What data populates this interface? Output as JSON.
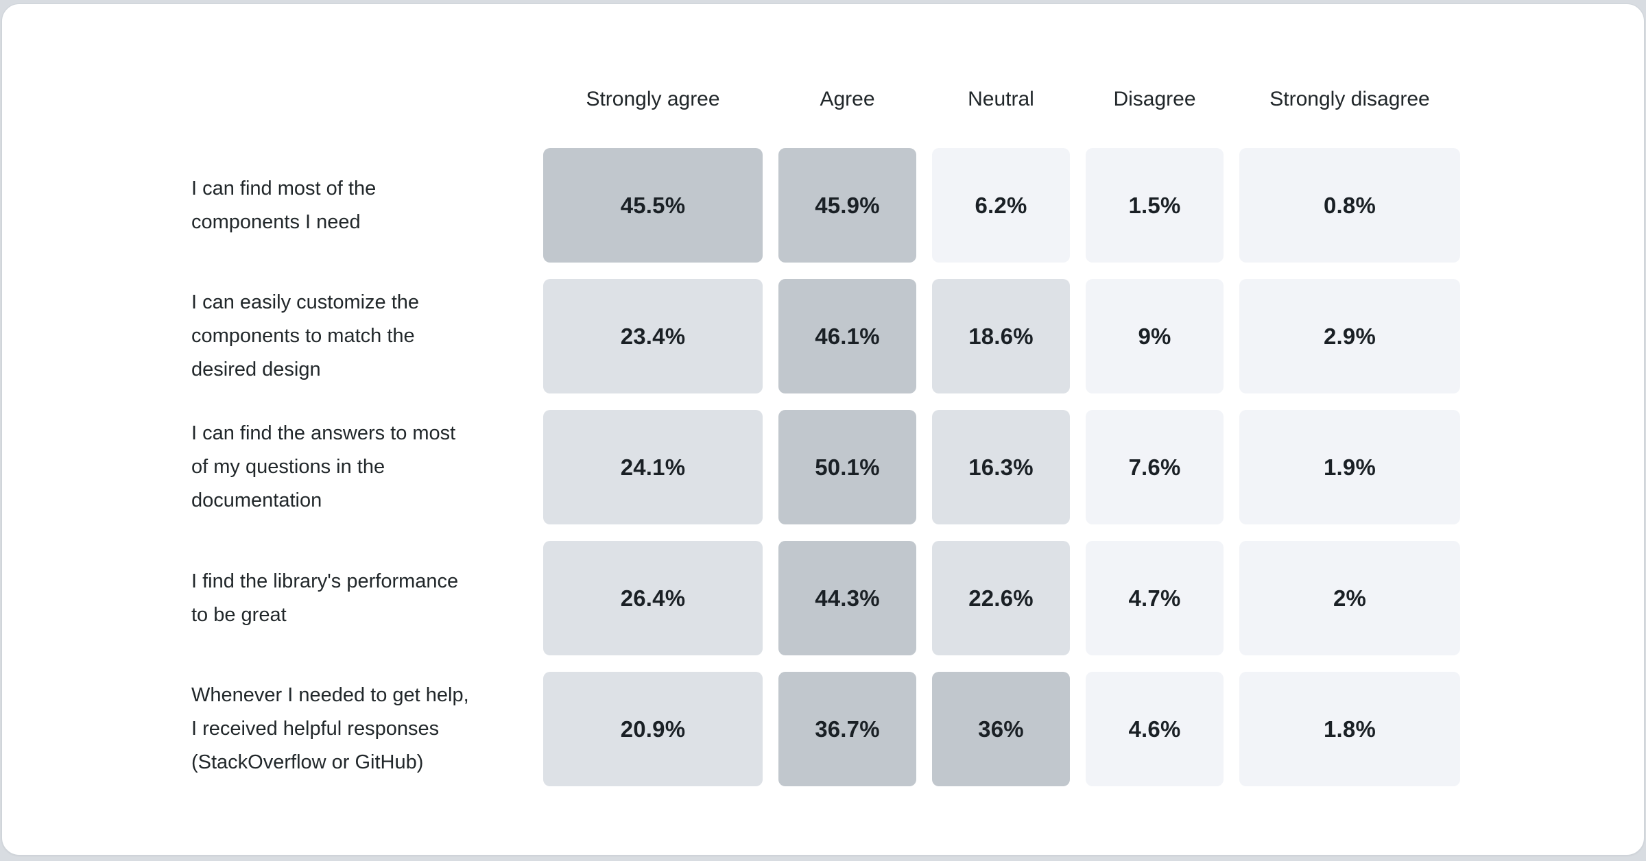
{
  "page": {
    "background": "#d8dce1",
    "card_background": "#ffffff",
    "card_border": "#ced3d9"
  },
  "chart_data": {
    "type": "heatmap",
    "title": "",
    "unit": "%",
    "legend_position": "none",
    "grid": false,
    "palette": {
      "high": "#c1c7cd",
      "mid": "#dde1e6",
      "low": "#f2f4f8",
      "text": "#1a2025"
    },
    "columns": [
      "Strongly agree",
      "Agree",
      "Neutral",
      "Disagree",
      "Strongly disagree"
    ],
    "rows": [
      {
        "label": "I can find most of the components I need",
        "label_lines": [
          "I can find most of the",
          "components I need"
        ],
        "values": [
          45.5,
          45.9,
          6.2,
          1.5,
          0.8
        ],
        "display": [
          "45.5%",
          "45.9%",
          "6.2%",
          "1.5%",
          "0.8%"
        ],
        "cell_colors": [
          "#c1c7cd",
          "#c1c7cd",
          "#f2f4f8",
          "#f2f4f8",
          "#f2f4f8"
        ]
      },
      {
        "label": "I can easily customize the components to match the desired design",
        "label_lines": [
          "I can easily customize the",
          "components to match the",
          "desired design"
        ],
        "values": [
          23.4,
          46.1,
          18.6,
          9,
          2.9
        ],
        "display": [
          "23.4%",
          "46.1%",
          "18.6%",
          "9%",
          "2.9%"
        ],
        "cell_colors": [
          "#dde1e6",
          "#c1c7cd",
          "#dde1e6",
          "#f2f4f8",
          "#f2f4f8"
        ]
      },
      {
        "label": "I can find the answers to most of my questions in the documentation",
        "label_lines": [
          "I can find the answers to most",
          "of my questions in the",
          "documentation"
        ],
        "values": [
          24.1,
          50.1,
          16.3,
          7.6,
          1.9
        ],
        "display": [
          "24.1%",
          "50.1%",
          "16.3%",
          "7.6%",
          "1.9%"
        ],
        "cell_colors": [
          "#dde1e6",
          "#c1c7cd",
          "#dde1e6",
          "#f2f4f8",
          "#f2f4f8"
        ]
      },
      {
        "label": "I find the library's performance to be great",
        "label_lines": [
          "I find the library's performance",
          "to be great"
        ],
        "values": [
          26.4,
          44.3,
          22.6,
          4.7,
          2
        ],
        "display": [
          "26.4%",
          "44.3%",
          "22.6%",
          "4.7%",
          "2%"
        ],
        "cell_colors": [
          "#dde1e6",
          "#c1c7cd",
          "#dde1e6",
          "#f2f4f8",
          "#f2f4f8"
        ]
      },
      {
        "label": "Whenever I needed to get help, I received helpful responses (StackOverflow or GitHub)",
        "label_lines": [
          "Whenever I needed to get help,",
          "I received helpful responses",
          "(StackOverflow or GitHub)"
        ],
        "values": [
          20.9,
          36.7,
          36,
          4.6,
          1.8
        ],
        "display": [
          "20.9%",
          "36.7%",
          "36%",
          "4.6%",
          "1.8%"
        ],
        "cell_colors": [
          "#dde1e6",
          "#c1c7cd",
          "#c1c7cd",
          "#f2f4f8",
          "#f2f4f8"
        ]
      }
    ]
  }
}
